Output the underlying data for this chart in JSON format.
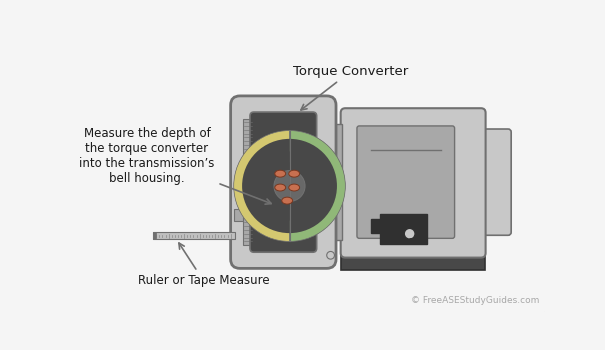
{
  "bg_color": "#f5f5f5",
  "border_color": "#cccccc",
  "title": "Torque Converter",
  "label_measure": "Measure the depth of\nthe torque converter\ninto the transmission’s\nbell housing.",
  "label_ruler": "Ruler or Tape Measure",
  "label_copyright": "© FreeASEStudyGuides.com",
  "text_color": "#1a1a1a",
  "gray_lightest": "#e0e0e0",
  "gray_light": "#c8c8c8",
  "gray_mid": "#a8a8a8",
  "gray_dark": "#707070",
  "gray_darker": "#484848",
  "gray_darkest": "#303030",
  "yellow_left": "#d4c870",
  "green_right": "#90b878",
  "green_dark": "#70a058",
  "dark_hub": "#686868",
  "dark_hub2": "#585858",
  "oval_color": "#c87050",
  "tick_color": "#888888",
  "ruler_fill": "#c0c0c0"
}
